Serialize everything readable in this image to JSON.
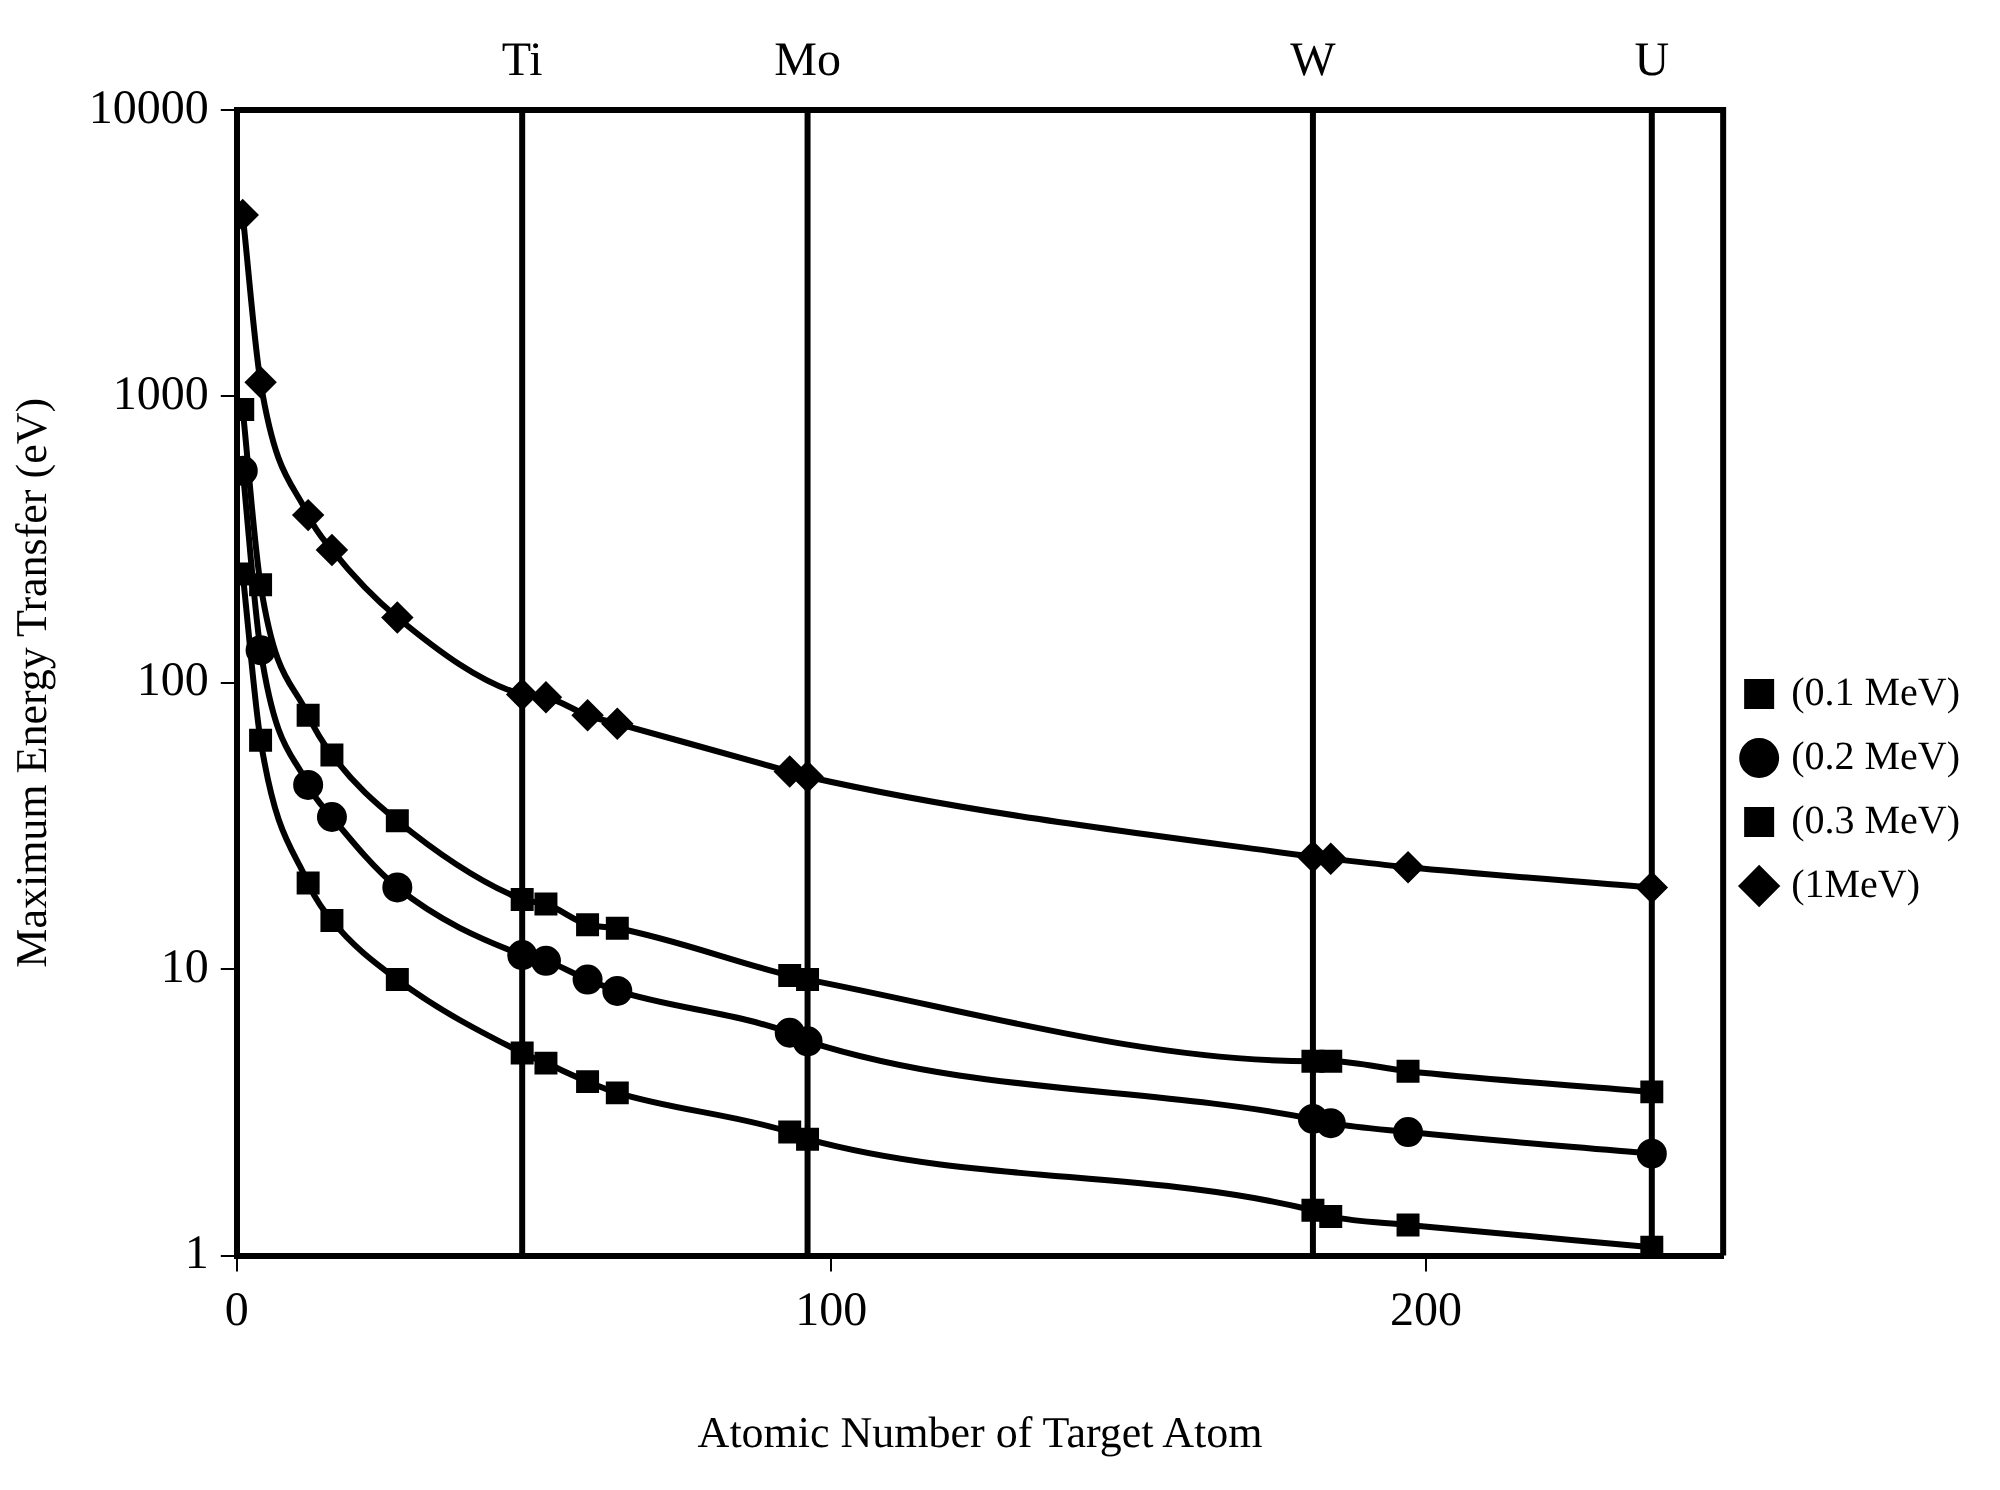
{
  "chart_data": {
    "type": "line",
    "xlabel": "Atomic Number of Target Atom",
    "ylabel": "Maximum Energy Transfer (eV)",
    "x": [
      1,
      4,
      12,
      16,
      27,
      48,
      52,
      59,
      64,
      93,
      96,
      181,
      184,
      197,
      238
    ],
    "series": [
      {
        "name": "(0.1 MeV)",
        "color": "#000000",
        "marker": "square",
        "values": [
          240,
          63,
          20,
          14.8,
          9.2,
          5.1,
          4.7,
          4.05,
          3.7,
          2.7,
          2.55,
          1.44,
          1.37,
          1.28,
          1.07
        ]
      },
      {
        "name": "(0.2 MeV)",
        "color": "#000000",
        "marker": "circle",
        "values": [
          550,
          130,
          44,
          34,
          19.3,
          11.2,
          10.7,
          9.2,
          8.4,
          6.0,
          5.6,
          3.0,
          2.9,
          2.7,
          2.27
        ]
      },
      {
        "name": "(0.3 MeV)",
        "color": "#000000",
        "marker": "square",
        "values": [
          900,
          220,
          77,
          56,
          33,
          17.5,
          16.9,
          14.3,
          13.9,
          9.5,
          9.2,
          4.77,
          4.77,
          4.4,
          3.73
        ]
      },
      {
        "name": "(1MeV)",
        "color": "#000000",
        "marker": "diamond",
        "values": [
          4300,
          1120,
          385,
          291,
          169,
          91,
          89,
          77,
          72,
          49,
          47,
          24.7,
          24.3,
          22.7,
          19.3
        ]
      }
    ],
    "xlim": [
      0,
      250
    ],
    "xticks": [
      0,
      100,
      200
    ],
    "ylim": [
      1,
      10000
    ],
    "yticks": [
      1,
      10,
      100,
      1000,
      10000
    ],
    "log": "y",
    "ref_lines": [
      {
        "axis": "x",
        "value": 48,
        "label": "Ti"
      },
      {
        "axis": "x",
        "value": 96,
        "label": "Mo"
      },
      {
        "axis": "x",
        "value": 181,
        "label": "W"
      },
      {
        "axis": "x",
        "value": 238,
        "label": "U"
      }
    ],
    "grid": false,
    "legend": "right"
  }
}
